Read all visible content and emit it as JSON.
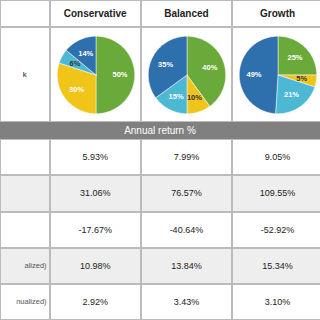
{
  "chart_data": [
    {
      "type": "pie",
      "title": "Conservative",
      "values": [
        50,
        30,
        6,
        14
      ],
      "value_labels": [
        "50%",
        "30%",
        "6%",
        "14%"
      ],
      "colors": [
        "#6aaa3a",
        "#f0c419",
        "#4db8d4",
        "#2e6fad"
      ],
      "label_colors": [
        "#ffffff",
        "#ffffff",
        "#333333",
        "#ffffff"
      ],
      "data_labels": true
    },
    {
      "type": "pie",
      "title": "Balanced",
      "values": [
        40,
        10,
        15,
        35
      ],
      "value_labels": [
        "40%",
        "10%",
        "15%",
        "35%"
      ],
      "colors": [
        "#6aaa3a",
        "#f0c419",
        "#4db8d4",
        "#2e6fad"
      ],
      "label_colors": [
        "#ffffff",
        "#333333",
        "#ffffff",
        "#ffffff"
      ],
      "data_labels": true
    },
    {
      "type": "pie",
      "title": "Growth",
      "values": [
        25,
        5,
        21,
        49
      ],
      "value_labels": [
        "25%",
        "5%",
        "21%",
        "49%"
      ],
      "colors": [
        "#6aaa3a",
        "#f0c419",
        "#4db8d4",
        "#2e6fad"
      ],
      "label_colors": [
        "#ffffff",
        "#333333",
        "#ffffff",
        "#ffffff"
      ],
      "data_labels": true
    },
    {
      "type": "table",
      "title": "Annual return %",
      "annotations": [
        "k"
      ],
      "rows": [
        [
          "5.93%",
          "7.99%",
          "9.05%"
        ],
        [
          "31.06%",
          "76.57%",
          "109.55%"
        ],
        [
          "-17.67%",
          "-40.64%",
          "-52.92%"
        ],
        [
          "10.98%",
          "13.84%",
          "15.34%"
        ],
        [
          "2.92%",
          "3.43%",
          "3.10%"
        ]
      ],
      "row_labels": [
        null,
        null,
        null,
        "alized)",
        "nualized)"
      ]
    }
  ]
}
